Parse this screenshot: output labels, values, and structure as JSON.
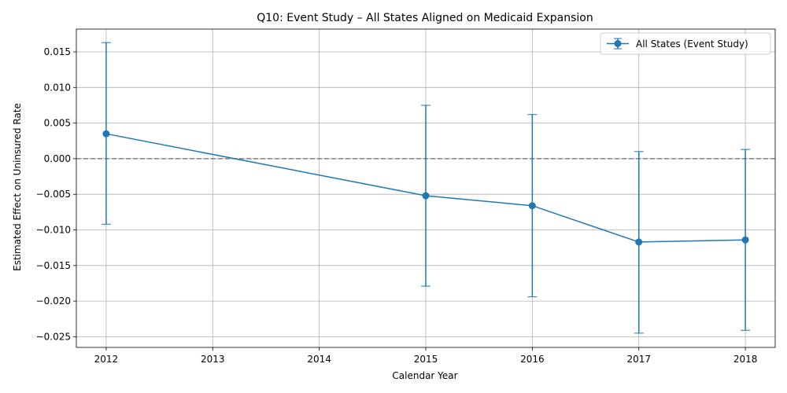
{
  "chart_data": {
    "type": "line",
    "title": "Q10: Event Study – All States Aligned on Medicaid Expansion",
    "xlabel": "Calendar Year",
    "ylabel": "Estimated Effect on Uninsured Rate",
    "xlim": [
      2011.72,
      2018.28
    ],
    "ylim": [
      -0.0265,
      0.0182
    ],
    "x_ticks": [
      2012,
      2013,
      2014,
      2015,
      2016,
      2017,
      2018
    ],
    "y_ticks": [
      -0.025,
      -0.02,
      -0.015,
      -0.01,
      -0.005,
      0.0,
      0.005,
      0.01,
      0.015
    ],
    "y_tick_labels": [
      "−0.025",
      "−0.020",
      "−0.015",
      "−0.010",
      "−0.005",
      "0.000",
      "0.005",
      "0.010",
      "0.015"
    ],
    "grid": true,
    "reference_line": {
      "y": 0,
      "style": "dashed",
      "color": "#808080"
    },
    "legend": {
      "position": "top-right"
    },
    "series": [
      {
        "name": "All States (Event Study)",
        "color": "#1f77b4",
        "x": [
          2012,
          2015,
          2016,
          2017,
          2018
        ],
        "y": [
          0.0035,
          -0.0052,
          -0.0066,
          -0.0117,
          -0.0114
        ],
        "ci_lower": [
          -0.0092,
          -0.0179,
          -0.0194,
          -0.0245,
          -0.0241
        ],
        "ci_upper": [
          0.0163,
          0.0075,
          0.0062,
          0.001,
          0.0013
        ]
      }
    ]
  }
}
